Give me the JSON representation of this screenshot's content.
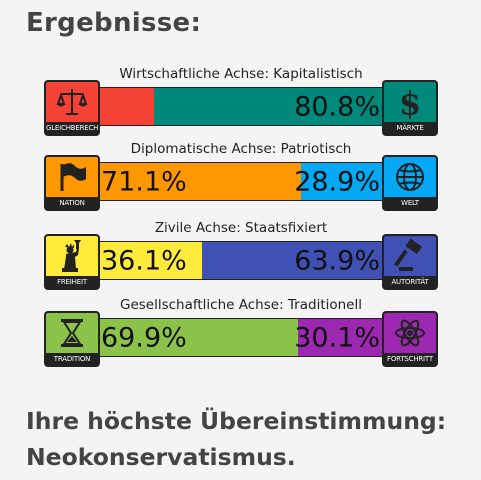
{
  "page": {
    "title": "Ergebnisse:"
  },
  "axes": [
    {
      "label": "Wirtschaftliche Achse: Kapitalistisch",
      "left_icon": {
        "name": "scales-icon",
        "caption": "GLEICHBERECHTIGUNG",
        "color": "#f44336"
      },
      "right_icon": {
        "name": "dollar-icon",
        "caption": "MÄRKTE",
        "color": "#00897b"
      },
      "left_value": 19.2,
      "right_value": 80.8,
      "left_pct": "",
      "right_pct": "80.8%",
      "left_color": "#f44336",
      "right_color": "#00897b"
    },
    {
      "label": "Diplomatische Achse: Patriotisch",
      "left_icon": {
        "name": "flag-icon",
        "caption": "NATION",
        "color": "#ff9800"
      },
      "right_icon": {
        "name": "globe-icon",
        "caption": "WELT",
        "color": "#03a9f4"
      },
      "left_value": 71.1,
      "right_value": 28.9,
      "left_pct": "71.1%",
      "right_pct": "28.9%",
      "left_color": "#ff9800",
      "right_color": "#03a9f4"
    },
    {
      "label": "Zivile Achse: Staatsfixiert",
      "left_icon": {
        "name": "statue-of-liberty-icon",
        "caption": "FREIHEIT",
        "color": "#ffeb3b"
      },
      "right_icon": {
        "name": "gavel-icon",
        "caption": "AUTORITÄT",
        "color": "#3f51b5"
      },
      "left_value": 36.1,
      "right_value": 63.9,
      "left_pct": "36.1%",
      "right_pct": "63.9%",
      "left_color": "#ffeb3b",
      "right_color": "#3f51b5"
    },
    {
      "label": "Gesellschaftliche Achse: Traditionell",
      "left_icon": {
        "name": "hourglass-icon",
        "caption": "TRADITION",
        "color": "#8bc34a"
      },
      "right_icon": {
        "name": "atom-icon",
        "caption": "FORTSCHRITT",
        "color": "#9c27b0"
      },
      "left_value": 69.9,
      "right_value": 30.1,
      "left_pct": "69.9%",
      "right_pct": "30.1%",
      "left_color": "#8bc34a",
      "right_color": "#9c27b0"
    }
  ],
  "result": {
    "line1": "Ihre höchste Übereinstimmung:",
    "line2": "Neokonservatismus."
  }
}
